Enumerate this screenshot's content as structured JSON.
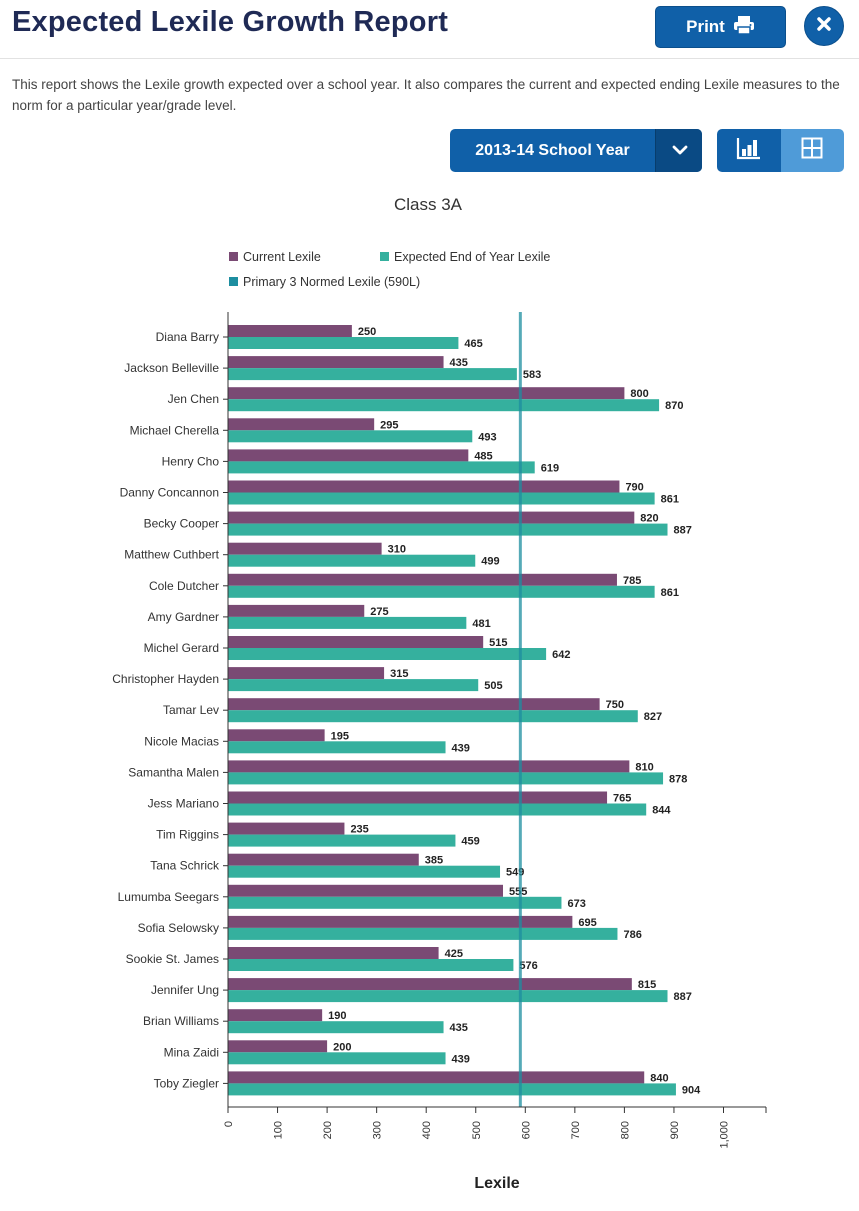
{
  "header": {
    "title": "Expected Lexile Growth Report",
    "print_label": "Print"
  },
  "description": "This report shows the Lexile growth expected over a school year. It also compares the current and expected ending Lexile measures to the norm for a particular year/grade level.",
  "controls": {
    "year_selected": "2013-14 School Year",
    "view_modes": [
      "chart",
      "grid"
    ],
    "active_view": "chart"
  },
  "icons": {
    "print": "printer-icon",
    "close": "close-icon",
    "dropdown": "chevron-down-icon",
    "bar_view": "bar-chart-icon",
    "grid_view": "grid-icon"
  },
  "colors": {
    "primary": "#1060a8",
    "current": "#7a4a74",
    "expected": "#35b09e",
    "norm": "#1d8ea0"
  },
  "chart_data": {
    "type": "bar",
    "orientation": "horizontal",
    "title": "Class 3A",
    "xlabel": "Lexile",
    "ylabel": "",
    "xlim": [
      0,
      1000
    ],
    "xticks": [
      "0",
      "100",
      "200",
      "300",
      "400",
      "500",
      "600",
      "700",
      "800",
      "900",
      "1,000"
    ],
    "grid": false,
    "legend_position": "top",
    "categories": [
      "Diana Barry",
      "Jackson Belleville",
      "Jen Chen",
      "Michael Cherella",
      "Henry Cho",
      "Danny Concannon",
      "Becky Cooper",
      "Matthew Cuthbert",
      "Cole Dutcher",
      "Amy Gardner",
      "Michel Gerard",
      "Christopher Hayden",
      "Tamar Lev",
      "Nicole Macias",
      "Samantha Malen",
      "Jess Mariano",
      "Tim Riggins",
      "Tana Schrick",
      "Lumumba Seegars",
      "Sofia Selowsky",
      "Sookie St. James",
      "Jennifer Ung",
      "Brian Williams",
      "Mina Zaidi",
      "Toby Ziegler"
    ],
    "series": [
      {
        "name": "Current Lexile",
        "color": "#7a4a74",
        "values": [
          250,
          435,
          800,
          295,
          485,
          790,
          820,
          310,
          785,
          275,
          515,
          315,
          750,
          195,
          810,
          765,
          235,
          385,
          555,
          695,
          425,
          815,
          190,
          200,
          840
        ]
      },
      {
        "name": "Expected End of Year Lexile",
        "color": "#35b09e",
        "values": [
          465,
          583,
          870,
          493,
          619,
          861,
          887,
          499,
          861,
          481,
          642,
          505,
          827,
          439,
          878,
          844,
          459,
          549,
          673,
          786,
          576,
          887,
          435,
          439,
          904
        ]
      }
    ],
    "reference_line": {
      "name": "Primary 3 Normed Lexile (590L)",
      "value": 590,
      "color": "#1d8ea0"
    }
  }
}
